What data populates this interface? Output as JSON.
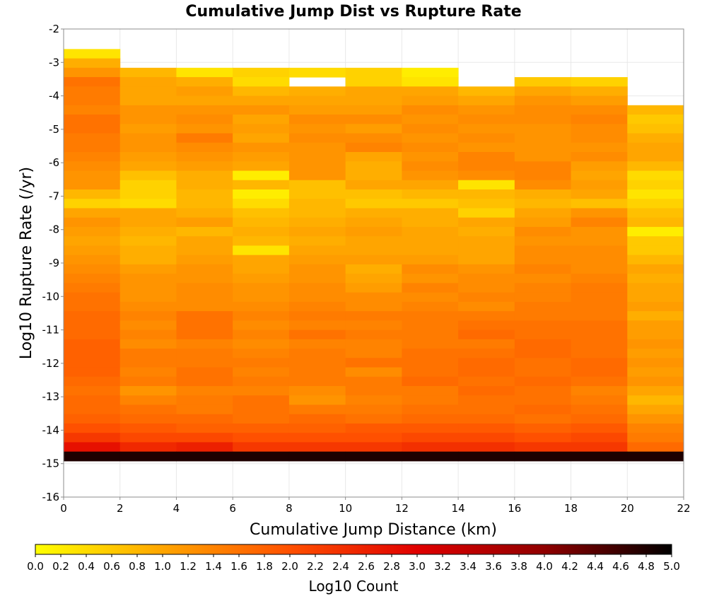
{
  "chart_data": {
    "type": "heatmap",
    "title": "Cumulative Jump Dist vs Rupture Rate",
    "xlabel": "Cumulative Jump Distance (km)",
    "ylabel": "Log10 Rupture Rate (/yr)",
    "xlim": [
      0,
      22
    ],
    "ylim": [
      -16,
      -2
    ],
    "x_ticks": [
      "0",
      "2",
      "4",
      "6",
      "8",
      "10",
      "12",
      "14",
      "16",
      "18",
      "20",
      "22"
    ],
    "y_ticks": [
      "-2",
      "-3",
      "-4",
      "-5",
      "-6",
      "-7",
      "-8",
      "-9",
      "-10",
      "-11",
      "-12",
      "-13",
      "-14",
      "-15",
      "-16"
    ],
    "x_bin_edges": [
      0,
      2,
      4,
      6,
      8,
      10,
      12,
      14,
      16,
      18,
      20,
      22
    ],
    "y_bin_top": -2.6,
    "y_bin_width": 0.28,
    "grid": true,
    "colorbar": {
      "label": "Log10 Count",
      "min": 0.0,
      "max": 5.0,
      "ticks": [
        "0.0",
        "0.2",
        "0.4",
        "0.6",
        "0.8",
        "1.0",
        "1.2",
        "1.4",
        "1.6",
        "1.8",
        "2.0",
        "2.2",
        "2.4",
        "2.6",
        "2.8",
        "3.0",
        "3.2",
        "3.4",
        "3.6",
        "3.8",
        "4.0",
        "4.2",
        "4.4",
        "4.6",
        "4.8",
        "5.0"
      ],
      "colormap": [
        "#ffff00",
        "#ffa500",
        "#ff5000",
        "#e00000",
        "#900000",
        "#000000"
      ]
    },
    "values": [
      [
        0.3,
        null,
        null,
        null,
        null,
        null,
        null,
        null,
        null,
        null,
        null
      ],
      [
        0.9,
        null,
        null,
        null,
        null,
        null,
        null,
        null,
        null,
        null,
        null
      ],
      [
        1.2,
        0.8,
        0.3,
        0.5,
        0.4,
        0.5,
        0.2,
        null,
        null,
        null,
        null
      ],
      [
        1.6,
        1.0,
        0.9,
        0.4,
        null,
        0.5,
        0.3,
        null,
        0.6,
        0.5,
        null
      ],
      [
        1.5,
        1.0,
        1.1,
        0.8,
        0.9,
        1.0,
        1.0,
        0.8,
        1.0,
        0.9,
        null
      ],
      [
        1.5,
        1.0,
        1.0,
        1.0,
        1.0,
        1.0,
        1.1,
        1.0,
        1.2,
        1.1,
        null
      ],
      [
        1.4,
        1.2,
        1.2,
        1.2,
        1.1,
        1.1,
        1.3,
        1.2,
        1.3,
        1.3,
        0.8
      ],
      [
        1.6,
        1.2,
        1.3,
        1.0,
        1.3,
        1.3,
        1.2,
        1.3,
        1.3,
        1.4,
        0.6
      ],
      [
        1.6,
        1.1,
        1.2,
        1.1,
        1.2,
        1.1,
        1.3,
        1.2,
        1.2,
        1.3,
        0.7
      ],
      [
        1.5,
        1.2,
        1.5,
        1.0,
        1.3,
        1.3,
        1.2,
        1.3,
        1.2,
        1.3,
        0.9
      ],
      [
        1.5,
        1.2,
        1.3,
        1.2,
        1.2,
        1.4,
        1.3,
        1.2,
        1.2,
        1.2,
        1.0
      ],
      [
        1.4,
        1.1,
        1.2,
        1.1,
        1.2,
        1.0,
        1.2,
        1.4,
        1.2,
        1.3,
        1.0
      ],
      [
        1.3,
        1.0,
        1.1,
        1.0,
        1.2,
        0.9,
        1.3,
        1.4,
        1.4,
        1.1,
        0.8
      ],
      [
        1.2,
        0.7,
        0.9,
        0.2,
        1.2,
        0.9,
        1.2,
        1.3,
        1.4,
        1.0,
        0.4
      ],
      [
        1.2,
        0.5,
        0.9,
        0.8,
        0.7,
        1.0,
        1.0,
        0.3,
        1.3,
        1.1,
        0.5
      ],
      [
        0.8,
        0.5,
        0.8,
        0.2,
        0.7,
        0.7,
        0.8,
        0.8,
        0.9,
        1.0,
        0.3
      ],
      [
        0.5,
        0.4,
        0.8,
        0.4,
        0.8,
        0.6,
        0.6,
        0.7,
        0.8,
        0.7,
        0.5
      ],
      [
        1.0,
        1.0,
        0.9,
        0.7,
        0.8,
        0.9,
        0.9,
        0.5,
        1.0,
        1.2,
        0.7
      ],
      [
        1.2,
        1.0,
        1.1,
        0.8,
        0.9,
        1.0,
        0.9,
        1.0,
        1.1,
        1.4,
        0.8
      ],
      [
        1.1,
        0.9,
        0.8,
        0.9,
        1.0,
        1.1,
        1.0,
        0.9,
        1.3,
        1.2,
        0.2
      ],
      [
        1.0,
        0.8,
        1.0,
        0.8,
        0.9,
        1.0,
        1.0,
        1.0,
        1.2,
        1.2,
        0.6
      ],
      [
        1.1,
        0.9,
        1.0,
        0.3,
        1.0,
        1.0,
        1.0,
        1.0,
        1.3,
        1.3,
        0.6
      ],
      [
        1.2,
        0.9,
        1.1,
        1.0,
        1.1,
        1.1,
        1.1,
        1.0,
        1.3,
        1.3,
        0.8
      ],
      [
        1.3,
        1.1,
        1.2,
        1.0,
        1.2,
        0.9,
        1.3,
        1.2,
        1.4,
        1.3,
        1.0
      ],
      [
        1.4,
        1.2,
        1.2,
        1.1,
        1.2,
        1.0,
        1.2,
        1.3,
        1.3,
        1.4,
        0.9
      ],
      [
        1.5,
        1.2,
        1.3,
        1.2,
        1.3,
        1.1,
        1.4,
        1.3,
        1.4,
        1.5,
        1.0
      ],
      [
        1.6,
        1.2,
        1.3,
        1.2,
        1.3,
        1.3,
        1.3,
        1.4,
        1.4,
        1.5,
        1.0
      ],
      [
        1.6,
        1.3,
        1.3,
        1.3,
        1.4,
        1.3,
        1.4,
        1.3,
        1.5,
        1.5,
        1.1
      ],
      [
        1.7,
        1.4,
        1.6,
        1.4,
        1.5,
        1.5,
        1.5,
        1.5,
        1.5,
        1.5,
        0.9
      ],
      [
        1.7,
        1.3,
        1.6,
        1.3,
        1.4,
        1.4,
        1.5,
        1.6,
        1.6,
        1.6,
        1.1
      ],
      [
        1.7,
        1.4,
        1.6,
        1.4,
        1.6,
        1.5,
        1.5,
        1.7,
        1.6,
        1.6,
        1.1
      ],
      [
        1.8,
        1.3,
        1.4,
        1.3,
        1.4,
        1.4,
        1.5,
        1.5,
        1.7,
        1.6,
        1.2
      ],
      [
        1.8,
        1.5,
        1.5,
        1.4,
        1.5,
        1.4,
        1.6,
        1.6,
        1.7,
        1.6,
        1.1
      ],
      [
        1.8,
        1.5,
        1.5,
        1.5,
        1.5,
        1.6,
        1.6,
        1.7,
        1.6,
        1.7,
        1.2
      ],
      [
        1.8,
        1.4,
        1.6,
        1.4,
        1.5,
        1.3,
        1.6,
        1.7,
        1.6,
        1.7,
        1.1
      ],
      [
        1.7,
        1.5,
        1.6,
        1.5,
        1.5,
        1.5,
        1.7,
        1.6,
        1.7,
        1.6,
        1.2
      ],
      [
        1.6,
        1.2,
        1.4,
        1.4,
        1.3,
        1.5,
        1.5,
        1.7,
        1.6,
        1.4,
        1.0
      ],
      [
        1.7,
        1.4,
        1.5,
        1.6,
        1.2,
        1.4,
        1.5,
        1.6,
        1.6,
        1.5,
        0.8
      ],
      [
        1.7,
        1.6,
        1.5,
        1.6,
        1.5,
        1.5,
        1.6,
        1.6,
        1.7,
        1.6,
        1.0
      ],
      [
        1.8,
        1.7,
        1.7,
        1.6,
        1.7,
        1.6,
        1.7,
        1.7,
        1.6,
        1.7,
        1.2
      ],
      [
        2.0,
        1.9,
        1.8,
        1.8,
        1.8,
        1.9,
        1.9,
        1.9,
        1.8,
        1.9,
        1.4
      ],
      [
        2.3,
        2.1,
        2.1,
        2.0,
        2.0,
        2.0,
        2.1,
        2.1,
        2.0,
        2.1,
        1.5
      ],
      [
        2.8,
        2.5,
        2.6,
        2.3,
        2.3,
        2.3,
        2.4,
        2.4,
        2.3,
        2.3,
        1.7
      ],
      [
        4.8,
        4.8,
        4.8,
        4.8,
        4.8,
        4.8,
        4.8,
        4.8,
        4.8,
        4.8,
        4.8
      ]
    ]
  }
}
